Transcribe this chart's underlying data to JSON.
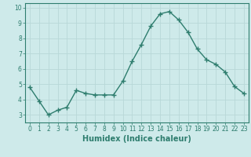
{
  "x": [
    0,
    1,
    2,
    3,
    4,
    5,
    6,
    7,
    8,
    9,
    10,
    11,
    12,
    13,
    14,
    15,
    16,
    17,
    18,
    19,
    20,
    21,
    22,
    23
  ],
  "y": [
    4.8,
    3.9,
    3.0,
    3.3,
    3.5,
    4.6,
    4.4,
    4.3,
    4.3,
    4.3,
    5.2,
    6.5,
    7.6,
    8.8,
    9.6,
    9.75,
    9.2,
    8.4,
    7.3,
    6.6,
    6.3,
    5.8,
    4.85,
    4.4
  ],
  "line_color": "#2e7d6e",
  "marker": "+",
  "marker_size": 4,
  "bg_color": "#ceeaea",
  "grid_color": "#b8d8d8",
  "xlabel": "Humidex (Indice chaleur)",
  "ylim": [
    2.5,
    10.3
  ],
  "xlim": [
    -0.5,
    23.5
  ],
  "yticks": [
    3,
    4,
    5,
    6,
    7,
    8,
    9,
    10
  ],
  "xticks": [
    0,
    1,
    2,
    3,
    4,
    5,
    6,
    7,
    8,
    9,
    10,
    11,
    12,
    13,
    14,
    15,
    16,
    17,
    18,
    19,
    20,
    21,
    22,
    23
  ],
  "tick_color": "#2e7d6e",
  "label_color": "#2e7d6e",
  "font_size_xlabel": 7,
  "font_size_ticks": 5.5,
  "line_width": 1.0
}
